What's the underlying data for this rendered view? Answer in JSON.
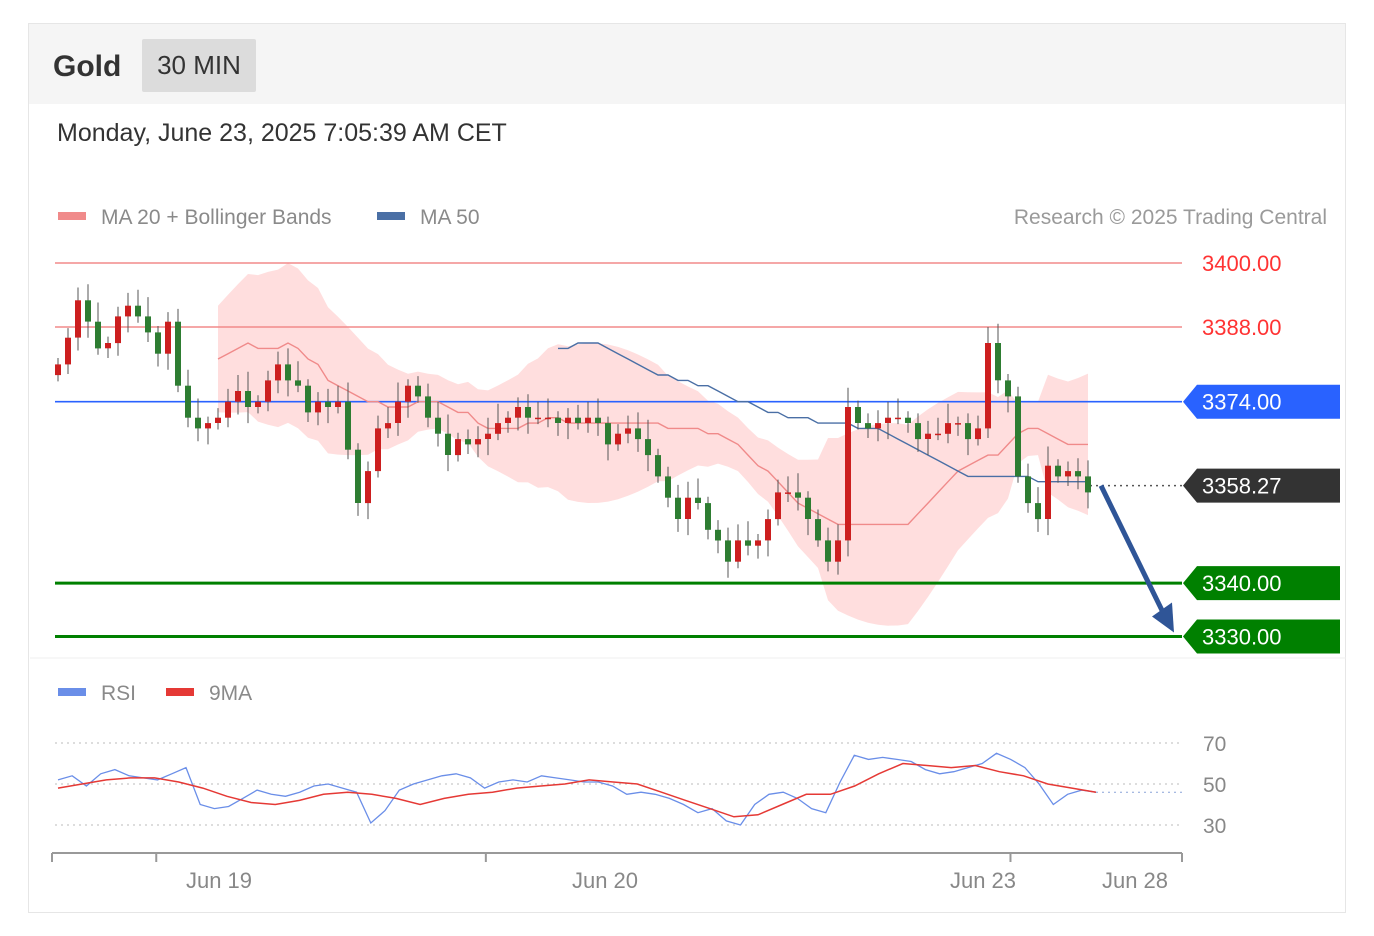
{
  "header": {
    "title": "Gold",
    "interval": "30 MIN",
    "datetime": "Monday, June 23, 2025 7:05:39 AM CET"
  },
  "legend": {
    "ma20": "MA 20 + Bollinger Bands",
    "ma50": "MA 50",
    "copyright": "Research © 2025 Trading Central",
    "rsi": "RSI",
    "rsi_ma": "9MA"
  },
  "colors": {
    "up": "#cc1f1f",
    "down": "#2e7d32",
    "ma20": "#f08a8a",
    "bollinger": "#ffd6d6",
    "ma50": "#4a6fa5",
    "resistance": "#ff3333",
    "pivot": "#2962ff",
    "support": "#008000",
    "current": "#333333",
    "arrow": "#2f5597",
    "rsi": "#6a8ee8",
    "rsi_ma": "#e53935"
  },
  "chart_data": {
    "type": "candlestick",
    "instrument": "Gold",
    "interval": "30 MIN",
    "ylim": [
      3326,
      3404
    ],
    "levels": [
      {
        "value": 3400.0,
        "label": "3400.00",
        "kind": "resistance"
      },
      {
        "value": 3388.0,
        "label": "3388.00",
        "kind": "resistance"
      },
      {
        "value": 3374.0,
        "label": "3374.00",
        "kind": "pivot"
      },
      {
        "value": 3358.27,
        "label": "3358.27",
        "kind": "current"
      },
      {
        "value": 3340.0,
        "label": "3340.00",
        "kind": "support"
      },
      {
        "value": 3330.0,
        "label": "3330.00",
        "kind": "support"
      }
    ],
    "x_ticks": [
      "Jun 19",
      "Jun 20",
      "Jun 23",
      "Jun 28"
    ],
    "tick_positions": [
      0.0,
      15.5,
      64.5,
      142.5,
      168.0
    ],
    "forecast": {
      "from": 3358.27,
      "to": 3330.0
    },
    "closes": [
      3381,
      3386,
      3393,
      3389,
      3384,
      3385,
      3390,
      3392,
      3390,
      3387,
      3383,
      3389,
      3377,
      3371,
      3369,
      3370,
      3371,
      3374,
      3376,
      3373,
      3374,
      3378,
      3381,
      3378,
      3377,
      3372,
      3374,
      3373,
      3374,
      3365,
      3355,
      3361,
      3369,
      3370,
      3374,
      3377,
      3375,
      3371,
      3368,
      3364,
      3367,
      3366,
      3367,
      3368,
      3370,
      3371,
      3373,
      3371,
      3371,
      3371,
      3370,
      3371,
      3370,
      3371,
      3370,
      3366,
      3368,
      3369,
      3367,
      3364,
      3360,
      3356,
      3352,
      3356,
      3355,
      3350,
      3348,
      3344,
      3348,
      3347,
      3348,
      3352,
      3357,
      3357,
      3356,
      3352,
      3348,
      3344,
      3348,
      3373,
      3370,
      3369,
      3370,
      3371,
      3371,
      3370,
      3367,
      3368,
      3368,
      3370,
      3370,
      3367,
      3369,
      3385,
      3378,
      3375,
      3360,
      3355,
      3352,
      3362,
      3360,
      3361,
      3360,
      3357
    ],
    "ma20": [
      3382,
      3383,
      3384,
      3385,
      3384,
      3384,
      3384,
      3385,
      3384,
      3382,
      3381,
      3378,
      3377,
      3376,
      3375,
      3374,
      3374,
      3373,
      3373,
      3373,
      3374,
      3374,
      3374,
      3373,
      3372,
      3372,
      3370,
      3369,
      3369,
      3369,
      3369,
      3370,
      3370,
      3371,
      3371,
      3370,
      3370,
      3370,
      3370,
      3370,
      3370,
      3370,
      3370,
      3370,
      3370,
      3369,
      3369,
      3369,
      3369,
      3368,
      3368,
      3367,
      3366,
      3364,
      3362,
      3361,
      3359,
      3357,
      3355,
      3354,
      3353,
      3352,
      3351,
      3351,
      3351,
      3351,
      3351,
      3351,
      3351,
      3351,
      3353,
      3355,
      3357,
      3359,
      3361,
      3362,
      3363,
      3364,
      3364,
      3366,
      3368,
      3369,
      3369,
      3368,
      3367,
      3366,
      3366,
      3366
    ],
    "ma50": [
      3384,
      3384,
      3385,
      3385,
      3385,
      3384,
      3383,
      3382,
      3381,
      3380,
      3379,
      3379,
      3378,
      3378,
      3377,
      3377,
      3376,
      3375,
      3374,
      3374,
      3373,
      3372,
      3372,
      3371,
      3371,
      3371,
      3370,
      3370,
      3370,
      3370,
      3369,
      3369,
      3369,
      3368,
      3367,
      3366,
      3365,
      3364,
      3363,
      3362,
      3361,
      3360,
      3360,
      3360,
      3360,
      3360,
      3360,
      3360,
      3359,
      3359,
      3359,
      3359,
      3359,
      3359
    ],
    "rsi": {
      "ylim": [
        25,
        75
      ],
      "ticks": [
        70,
        50,
        30
      ],
      "rsi_values": [
        52,
        54,
        49,
        55,
        57,
        54,
        53,
        52,
        55,
        58,
        40,
        38,
        39,
        43,
        47,
        45,
        44,
        46,
        49,
        50,
        48,
        46,
        31,
        37,
        47,
        50,
        52,
        54,
        55,
        53,
        48,
        51,
        52,
        51,
        54,
        53,
        52,
        51,
        51,
        49,
        45,
        46,
        45,
        43,
        40,
        36,
        38,
        32,
        30,
        40,
        45,
        46,
        43,
        38,
        36,
        51,
        64,
        62,
        63,
        62,
        61,
        57,
        55,
        56,
        58,
        60,
        65,
        62,
        58,
        50,
        40,
        45,
        47,
        46
      ],
      "ma_values": [
        48,
        50,
        52,
        53,
        53,
        51,
        48,
        44,
        41,
        40,
        42,
        45,
        46,
        45,
        43,
        40,
        43,
        45,
        46,
        48,
        49,
        50,
        52,
        51,
        50,
        46,
        42,
        38,
        34,
        35,
        40,
        45,
        45,
        49,
        55,
        60,
        59,
        58,
        59,
        56,
        54,
        50,
        48,
        46
      ]
    }
  }
}
